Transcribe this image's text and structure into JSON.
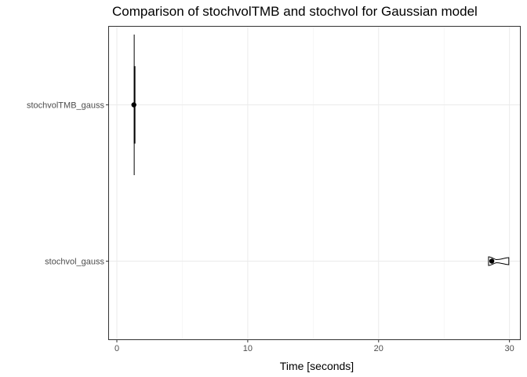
{
  "chart_data": {
    "type": "violin",
    "title": "Comparison of stochvolTMB and stochvol for Gaussian model",
    "xlabel": "Time [seconds]",
    "ylabel": "",
    "xlim": [
      -0.6,
      30.8
    ],
    "x_ticks": [
      0,
      10,
      20,
      30
    ],
    "x_tick_labels": [
      "0",
      "10",
      "20",
      "30"
    ],
    "grid": true,
    "orientation": "horizontal",
    "categories": [
      "stochvolTMB_gauss",
      "stochvol_gauss"
    ],
    "series": [
      {
        "min": 1.2,
        "max": 1.45,
        "median": 1.3
      },
      {
        "min": 28.4,
        "max": 29.95,
        "median": 28.65
      }
    ]
  }
}
